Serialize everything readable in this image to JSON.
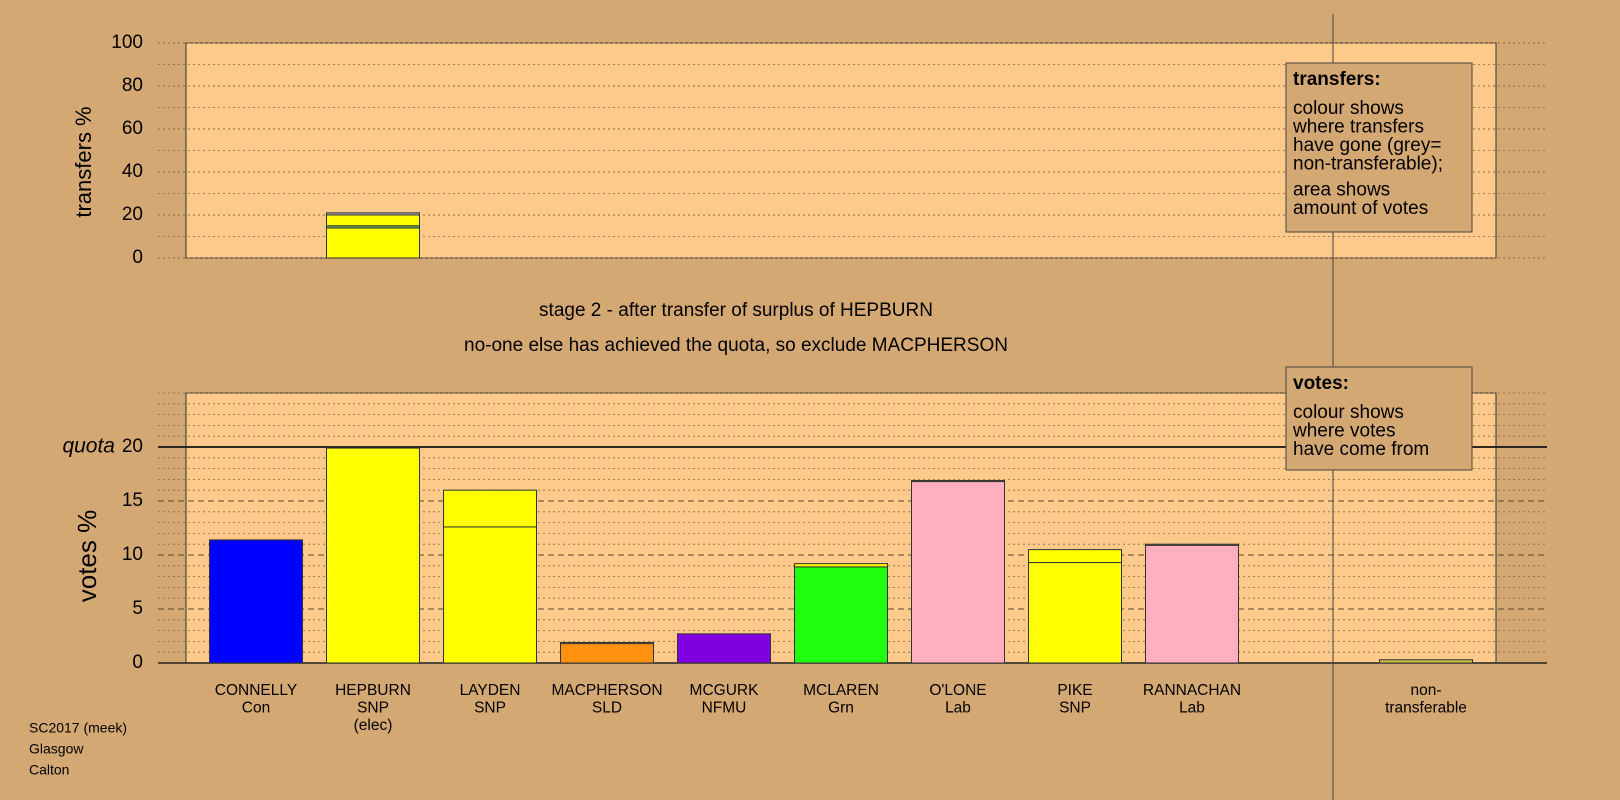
{
  "chart_data": [
    {
      "type": "stacked-bar",
      "y_label": "transfers %",
      "ylim": [
        0,
        100
      ],
      "yticks": [
        0,
        20,
        40,
        60,
        80,
        100
      ],
      "minor_yticks": [
        10,
        30,
        50,
        70,
        90
      ],
      "series": [
        {
          "color": "#ffff00",
          "values": [
            null,
            14,
            null,
            null,
            null,
            null,
            null,
            null,
            null,
            null,
            null
          ]
        },
        {
          "color": "#6cc45a",
          "values": [
            null,
            1,
            null,
            null,
            null,
            null,
            null,
            null,
            null,
            null,
            null
          ]
        },
        {
          "color": "#ffff00",
          "values": [
            null,
            5,
            null,
            null,
            null,
            null,
            null,
            null,
            null,
            null,
            null
          ]
        },
        {
          "color": "#a8a8a8",
          "values": [
            null,
            1,
            null,
            null,
            null,
            null,
            null,
            null,
            null,
            null,
            null
          ]
        }
      ],
      "legend": {
        "title": "transfers:",
        "paragraphs": [
          [
            "colour shows",
            "where transfers",
            "have gone (grey=",
            "non-transferable);"
          ],
          [
            "area shows",
            "amount of votes"
          ]
        ]
      }
    },
    {
      "type": "stacked-bar",
      "titles": [
        "stage 2 - after transfer of surplus of HEPBURN",
        "no-one else has achieved the quota, so exclude MACPHERSON"
      ],
      "y_label": "votes %",
      "ylim": [
        0,
        25
      ],
      "yticks": [
        0,
        5,
        10,
        15,
        20
      ],
      "minor_yticks": [
        1,
        2,
        3,
        4,
        6,
        7,
        8,
        9,
        11,
        12,
        13,
        14,
        16,
        17,
        18,
        19,
        21,
        22,
        23,
        24,
        25
      ],
      "quota": {
        "value": 20,
        "label": "quota"
      },
      "categories": [
        [
          "CONNELLY",
          "Con"
        ],
        [
          "HEPBURN",
          "SNP",
          "(elec)"
        ],
        [
          "LAYDEN",
          "SNP"
        ],
        [
          "MACPHERSON",
          "SLD"
        ],
        [
          "MCGURK",
          "NFMU"
        ],
        [
          "MCLAREN",
          "Grn"
        ],
        [
          "O'LONE",
          "Lab"
        ],
        [
          "PIKE",
          "SNP"
        ],
        [
          "RANNACHAN",
          "Lab"
        ],
        null,
        [
          "non-",
          "transferable"
        ]
      ],
      "series": [
        {
          "colors": [
            "#0000ff",
            "#ffff00",
            "#ffff00",
            "#ff9010",
            "#8000e0",
            "#20ff10",
            "#ffafc0",
            "#ffff00",
            "#ffafc0",
            null,
            "#c8c040"
          ],
          "values": [
            11.4,
            19.9,
            12.6,
            1.8,
            2.7,
            8.9,
            16.8,
            9.3,
            10.9,
            null,
            0.3
          ]
        },
        {
          "color": "#ffff00",
          "values": [
            0,
            0,
            3.4,
            0.1,
            0,
            0.3,
            0.1,
            1.2,
            0.1,
            null,
            0
          ]
        }
      ],
      "legend": {
        "title": "votes:",
        "paragraphs": [
          [
            "colour shows",
            "where votes",
            "have come from"
          ]
        ]
      }
    }
  ],
  "footer": [
    "SC2017 (meek)",
    "Glasgow",
    "Calton"
  ]
}
